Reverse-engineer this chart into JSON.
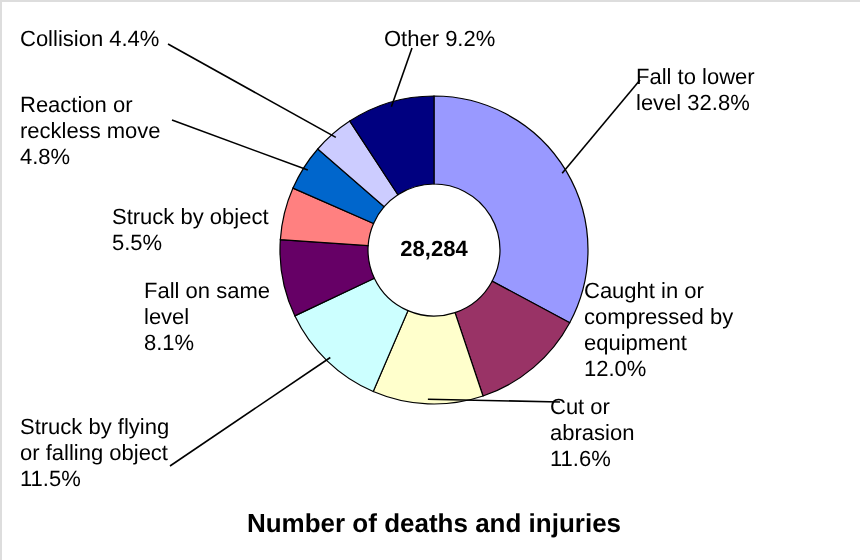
{
  "chart_data": {
    "type": "donut",
    "title": "Number of deaths and injuries",
    "categories": [
      "Fall to lower level",
      "Caught in or compressed by equipment",
      "Cut  or abrasion",
      "Struck by flying or falling object",
      "Fall on same level",
      "Struck by object",
      "Reaction or reckless move",
      "Collision",
      "Other"
    ],
    "values": [
      32.8,
      12.0,
      11.6,
      11.5,
      8.1,
      5.5,
      4.8,
      4.4,
      9.2
    ],
    "value_labels": [
      "32.8%",
      "12.0%",
      "11.6%",
      "11.5%",
      "8.1%",
      "5.5%",
      "4.8%",
      "4.4%",
      "9.2%"
    ],
    "colors": [
      "#9999ff",
      "#993366",
      "#ffffcc",
      "#ccffff",
      "#660066",
      "#ff8080",
      "#0066cc",
      "#ccccff",
      "#000080"
    ],
    "annotations": [
      "28,284"
    ]
  }
}
